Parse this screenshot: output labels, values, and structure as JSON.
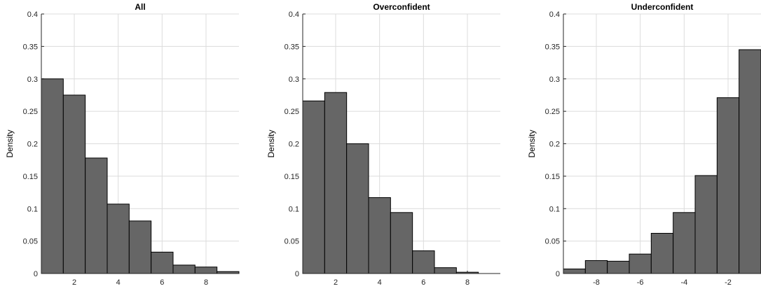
{
  "chart_data": [
    {
      "type": "bar",
      "title": "All",
      "ylabel": "Density",
      "ylim": [
        0,
        0.4
      ],
      "yticks": [
        "0",
        "0.05",
        "0.1",
        "0.15",
        "0.2",
        "0.25",
        "0.3",
        "0.35",
        "0.4"
      ],
      "xlim": [
        0.5,
        9.5
      ],
      "xticks": [
        "2",
        "4",
        "6",
        "8"
      ],
      "grid": true,
      "bar_color": "#666666",
      "bins": [
        {
          "x0": 0.5,
          "x1": 1.5,
          "value": 0.3
        },
        {
          "x0": 1.5,
          "x1": 2.5,
          "value": 0.275
        },
        {
          "x0": 2.5,
          "x1": 3.5,
          "value": 0.178
        },
        {
          "x0": 3.5,
          "x1": 4.5,
          "value": 0.107
        },
        {
          "x0": 4.5,
          "x1": 5.5,
          "value": 0.081
        },
        {
          "x0": 5.5,
          "x1": 6.5,
          "value": 0.033
        },
        {
          "x0": 6.5,
          "x1": 7.5,
          "value": 0.013
        },
        {
          "x0": 7.5,
          "x1": 8.5,
          "value": 0.01
        },
        {
          "x0": 8.5,
          "x1": 9.5,
          "value": 0.003
        }
      ]
    },
    {
      "type": "bar",
      "title": "Overconfident",
      "ylabel": "Density",
      "ylim": [
        0,
        0.4
      ],
      "yticks": [
        "0",
        "0.05",
        "0.1",
        "0.15",
        "0.2",
        "0.25",
        "0.3",
        "0.35",
        "0.4"
      ],
      "xlim": [
        0.5,
        9.5
      ],
      "xticks": [
        "2",
        "4",
        "6",
        "8"
      ],
      "grid": true,
      "bar_color": "#666666",
      "bins": [
        {
          "x0": 0.5,
          "x1": 1.5,
          "value": 0.266
        },
        {
          "x0": 1.5,
          "x1": 2.5,
          "value": 0.279
        },
        {
          "x0": 2.5,
          "x1": 3.5,
          "value": 0.2
        },
        {
          "x0": 3.5,
          "x1": 4.5,
          "value": 0.117
        },
        {
          "x0": 4.5,
          "x1": 5.5,
          "value": 0.094
        },
        {
          "x0": 5.5,
          "x1": 6.5,
          "value": 0.035
        },
        {
          "x0": 6.5,
          "x1": 7.5,
          "value": 0.009
        },
        {
          "x0": 7.5,
          "x1": 8.5,
          "value": 0.002
        },
        {
          "x0": 8.5,
          "x1": 9.5,
          "value": 0.0
        }
      ]
    },
    {
      "type": "bar",
      "title": "Underconfident",
      "ylabel": "Density",
      "ylim": [
        0,
        0.4
      ],
      "yticks": [
        "0",
        "0.05",
        "0.1",
        "0.15",
        "0.2",
        "0.25",
        "0.3",
        "0.35",
        "0.4"
      ],
      "xlim": [
        -9.5,
        -0.5
      ],
      "xticks": [
        "-8",
        "-6",
        "-4",
        "-2"
      ],
      "grid": true,
      "bar_color": "#666666",
      "bins": [
        {
          "x0": -9.5,
          "x1": -8.5,
          "value": 0.007
        },
        {
          "x0": -8.5,
          "x1": -7.5,
          "value": 0.02
        },
        {
          "x0": -7.5,
          "x1": -6.5,
          "value": 0.019
        },
        {
          "x0": -6.5,
          "x1": -5.5,
          "value": 0.03
        },
        {
          "x0": -5.5,
          "x1": -4.5,
          "value": 0.062
        },
        {
          "x0": -4.5,
          "x1": -3.5,
          "value": 0.094
        },
        {
          "x0": -3.5,
          "x1": -2.5,
          "value": 0.151
        },
        {
          "x0": -2.5,
          "x1": -1.5,
          "value": 0.271
        },
        {
          "x0": -1.5,
          "x1": -0.5,
          "value": 0.345
        }
      ]
    }
  ]
}
